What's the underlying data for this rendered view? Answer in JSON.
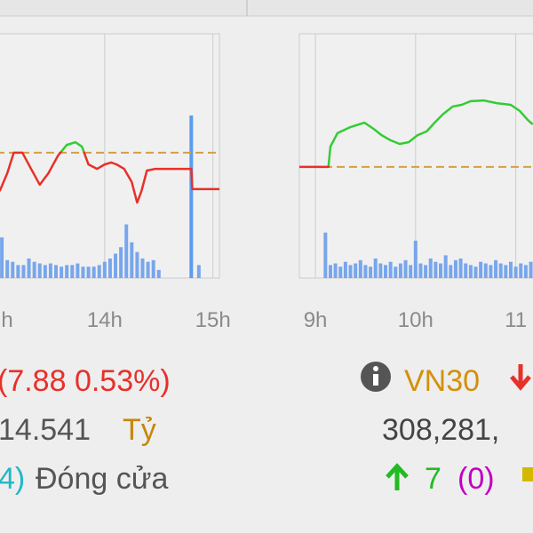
{
  "panels": [
    {
      "xlim": [
        13,
        15.06
      ],
      "xticks": [
        {
          "value": 13,
          "label": "h"
        },
        {
          "value": 14,
          "label": "14h"
        },
        {
          "value": 15,
          "label": "15h"
        }
      ],
      "ylim": [
        0,
        100
      ],
      "reference": 51.3,
      "vlim": [
        0,
        100
      ],
      "line": {
        "x": [
          13.03,
          13.1,
          13.16,
          13.24,
          13.32,
          13.4,
          13.48,
          13.57,
          13.65,
          13.73,
          13.79,
          13.85,
          13.93,
          14.0,
          14.06,
          14.11,
          14.18,
          14.25,
          14.3,
          14.34,
          14.39,
          14.47,
          14.59,
          14.8,
          14.81,
          15.06
        ],
        "values": [
          35.6,
          42.9,
          51.3,
          51.3,
          44.7,
          38.2,
          42.9,
          50.2,
          54.5,
          55.6,
          53.8,
          46.5,
          44.7,
          46.5,
          47.3,
          46.5,
          44.7,
          39.3,
          30.9,
          35.6,
          44.0,
          44.7,
          44.7,
          44.7,
          36.4,
          36.4
        ]
      },
      "volume": {
        "x": [
          13.05,
          13.1,
          13.15,
          13.2,
          13.25,
          13.3,
          13.35,
          13.4,
          13.45,
          13.5,
          13.55,
          13.6,
          13.65,
          13.7,
          13.75,
          13.8,
          13.85,
          13.9,
          13.95,
          14.0,
          14.05,
          14.1,
          14.15,
          14.2,
          14.25,
          14.3,
          14.35,
          14.4,
          14.45,
          14.5,
          14.8,
          14.87
        ],
        "values": [
          25,
          11,
          10,
          8,
          8,
          12,
          10,
          9,
          8,
          9,
          8,
          7,
          8,
          8,
          9,
          7,
          7,
          7,
          8,
          10,
          12,
          15,
          19,
          33,
          22,
          16,
          12,
          10,
          11,
          5,
          100,
          8
        ]
      }
    },
    {
      "xlim": [
        8.84,
        11.5
      ],
      "xticks": [
        {
          "value": 9,
          "label": "9h"
        },
        {
          "value": 10,
          "label": "10h"
        },
        {
          "value": 11,
          "label": "11"
        }
      ],
      "ylim": [
        0,
        100
      ],
      "reference": 45.5,
      "vlim": [
        0,
        100
      ],
      "line": {
        "x": [
          8.84,
          9.13,
          9.15,
          9.22,
          9.35,
          9.49,
          9.58,
          9.66,
          9.75,
          9.84,
          9.93,
          10.02,
          10.11,
          10.19,
          10.28,
          10.37,
          10.46,
          10.55,
          10.68,
          10.81,
          10.95,
          11.04,
          11.12,
          11.17
        ],
        "values": [
          45.5,
          45.5,
          53.8,
          59.3,
          61.8,
          63.6,
          61.1,
          58.5,
          56.4,
          54.9,
          55.6,
          58.5,
          60,
          63.6,
          67.3,
          70.2,
          70.9,
          72.4,
          72.7,
          71.6,
          70.9,
          68.4,
          64.7,
          62.9
        ]
      },
      "volume": {
        "x": [
          9.1,
          9.15,
          9.2,
          9.25,
          9.3,
          9.35,
          9.4,
          9.45,
          9.5,
          9.55,
          9.6,
          9.65,
          9.7,
          9.75,
          9.8,
          9.85,
          9.9,
          9.95,
          10.0,
          10.05,
          10.1,
          10.15,
          10.2,
          10.25,
          10.3,
          10.35,
          10.4,
          10.45,
          10.5,
          10.55,
          10.6,
          10.65,
          10.7,
          10.75,
          10.8,
          10.85,
          10.9,
          10.95,
          11.0,
          11.05,
          11.1,
          11.15
        ],
        "values": [
          28,
          8,
          9,
          7,
          10,
          8,
          9,
          11,
          8,
          7,
          12,
          9,
          8,
          10,
          7,
          9,
          11,
          8,
          23,
          9,
          8,
          12,
          10,
          9,
          14,
          8,
          11,
          12,
          9,
          8,
          7,
          10,
          9,
          8,
          11,
          9,
          8,
          10,
          7,
          9,
          8,
          10
        ]
      }
    }
  ],
  "info": {
    "change": "(7.88 0.53%)",
    "index": "VN30",
    "value": "14.541",
    "unit": "Tỷ",
    "volume": "308,281,",
    "count": "4)",
    "status": "Đóng cửa",
    "up": "7",
    "unchanged": "(0)"
  }
}
